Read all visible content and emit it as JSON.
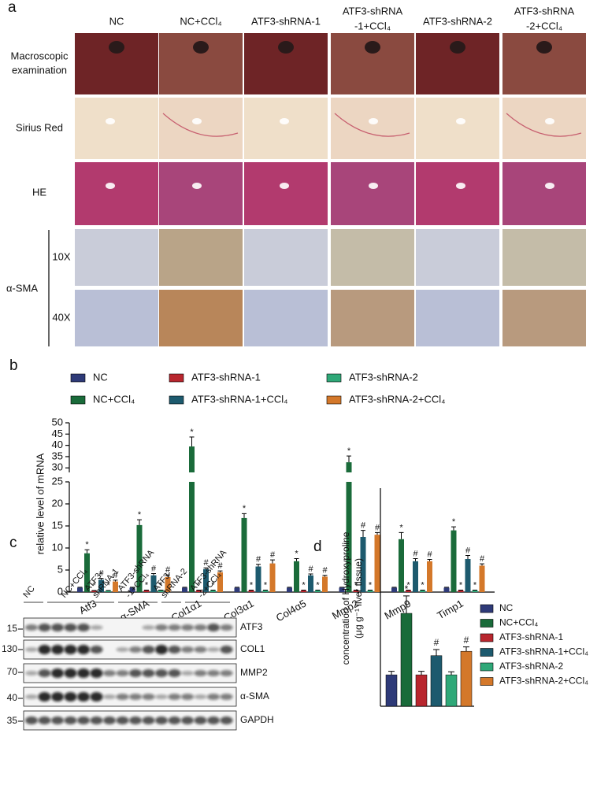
{
  "panel_labels": [
    "a",
    "b",
    "c",
    "d"
  ],
  "panel_a": {
    "columns": [
      [
        "NC"
      ],
      [
        "NC+CCl₄"
      ],
      [
        "ATF3-shRNA-1"
      ],
      [
        "ATF3-shRNA",
        "-1+CCl₄"
      ],
      [
        "ATF3-shRNA-2"
      ],
      [
        "ATF3-shRNA",
        "-2+CCl₄"
      ]
    ],
    "rows": [
      {
        "label": [
          "Macroscopic",
          "examination"
        ]
      },
      {
        "label": [
          "Sirius Red"
        ]
      },
      {
        "label": [
          "HE"
        ]
      },
      {
        "label": [
          "α-SMA"
        ],
        "sublabels": [
          "10X",
          "40X"
        ]
      }
    ]
  },
  "blot": {
    "lanes": [
      [
        "NC"
      ],
      [
        "NC+CCl₄"
      ],
      [
        "ATF3-",
        "shRNA-1"
      ],
      [
        "ATF3-shRNA",
        "-1+CCl₄"
      ],
      [
        "ATF3-",
        "shRNA-2"
      ],
      [
        "ATF3-shRNA",
        "-2+CCl₄"
      ]
    ],
    "proteins": [
      "ATF3",
      "COL1",
      "MMP2",
      "α-SMA",
      "GAPDH"
    ],
    "markers": [
      15,
      130,
      70,
      40,
      35
    ]
  },
  "chart_data": [
    {
      "type": "bar",
      "y_label": "relative level of mRNA",
      "categories": [
        "Atf3",
        "α-SMA",
        "Col1α1",
        "Col3α1",
        "Col4α5",
        "Mmp2",
        "Mmp9",
        "Timp1"
      ],
      "ylim": [
        0,
        50
      ],
      "ybreak": [
        25,
        28
      ],
      "yticks": [
        0,
        5,
        10,
        15,
        20,
        25,
        30,
        35,
        40,
        45,
        50
      ],
      "series": [
        {
          "name": "NC",
          "color": "#2e3a78",
          "values": [
            1,
            1,
            1,
            1,
            1,
            1,
            1,
            1
          ],
          "errors": [
            0.1,
            0.1,
            0.1,
            0.1,
            0.1,
            0.1,
            0.1,
            0.1
          ]
        },
        {
          "name": "NC+CCl₄",
          "color": "#1a6b3a",
          "marker": "*",
          "values": [
            8.8,
            15.2,
            39.5,
            16.8,
            7.0,
            32.5,
            12.0,
            14.0
          ],
          "errors": [
            0.8,
            1.2,
            4.2,
            1.0,
            0.6,
            2.8,
            1.5,
            0.8
          ]
        },
        {
          "name": "ATF3-shRNA-1",
          "color": "#b8262e",
          "marker": "*",
          "values": [
            0.3,
            0.4,
            0.4,
            0.4,
            0.4,
            0.4,
            0.4,
            0.4
          ],
          "errors": [
            0.05,
            0.05,
            0.05,
            0.05,
            0.05,
            0.05,
            0.05,
            0.05
          ]
        },
        {
          "name": "ATF3-shRNA-1+CCl₄",
          "color": "#1d5a6e",
          "marker": "#",
          "values": [
            2.8,
            3.8,
            5.2,
            5.8,
            3.8,
            12.5,
            7.0,
            7.5
          ],
          "errors": [
            0.3,
            0.4,
            0.3,
            0.5,
            0.3,
            1.5,
            0.6,
            0.8
          ]
        },
        {
          "name": "ATF3-shRNA-2",
          "color": "#2fa878",
          "marker": "*",
          "values": [
            0.3,
            0.4,
            0.4,
            0.4,
            0.4,
            0.4,
            0.4,
            0.4
          ],
          "errors": [
            0.05,
            0.05,
            0.05,
            0.05,
            0.05,
            0.05,
            0.05,
            0.05
          ]
        },
        {
          "name": "ATF3-shRNA-2+CCl₄",
          "color": "#d4782a",
          "marker": "#",
          "values": [
            2.4,
            3.4,
            4.5,
            6.5,
            3.5,
            13.0,
            7.0,
            6.0
          ],
          "errors": [
            0.3,
            0.5,
            0.3,
            0.8,
            0.3,
            0.5,
            0.4,
            0.4
          ]
        }
      ]
    },
    {
      "type": "bar",
      "y_label": [
        "concentration of Hydroxyproline",
        "(μg g⁻¹ liver tissue)"
      ],
      "categories": [
        null
      ],
      "ylim": [
        0,
        500
      ],
      "series": [
        {
          "name": "NC",
          "color": "#2e3a78",
          "values": [
            72
          ],
          "errors": [
            8
          ]
        },
        {
          "name": "NC+CCl₄",
          "color": "#1a6b3a",
          "marker": "*",
          "values": [
            213
          ],
          "errors": [
            40
          ]
        },
        {
          "name": "ATF3-shRNA-1",
          "color": "#b8262e",
          "values": [
            72
          ],
          "errors": [
            8
          ]
        },
        {
          "name": "ATF3-shRNA-1+CCl₄",
          "color": "#1d5a6e",
          "marker": "#",
          "values": [
            116
          ],
          "errors": [
            14
          ]
        },
        {
          "name": "ATF3-shRNA-2",
          "color": "#2fa878",
          "values": [
            72
          ],
          "errors": [
            7
          ]
        },
        {
          "name": "ATF3-shRNA-2+CCl₄",
          "color": "#d4782a",
          "marker": "#",
          "values": [
            126
          ],
          "errors": [
            10
          ]
        }
      ]
    }
  ]
}
